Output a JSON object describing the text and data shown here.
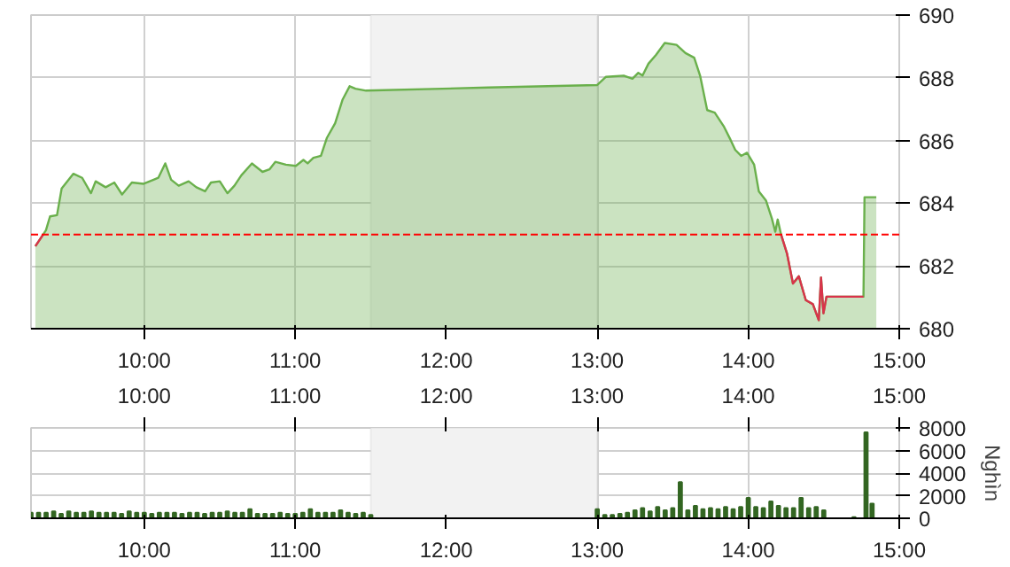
{
  "chart_data": [
    {
      "type": "area",
      "xlim": [
        9.25,
        15
      ],
      "ylim": [
        680,
        690
      ],
      "xticks": [
        {
          "value": 10,
          "label": "10:00"
        },
        {
          "value": 11,
          "label": "11:00"
        },
        {
          "value": 12,
          "label": "12:00"
        },
        {
          "value": 13,
          "label": "13:00"
        },
        {
          "value": 14,
          "label": "14:00"
        },
        {
          "value": 15,
          "label": "15:00"
        }
      ],
      "yticks": [
        680,
        682,
        684,
        686,
        688,
        690
      ],
      "grid": true,
      "ref_lines": [
        {
          "axis": "y",
          "value": 683,
          "color": "#ff0000",
          "line_style": "dashed"
        }
      ],
      "bands": [
        {
          "axis": "x",
          "from": 11.5,
          "to": 13,
          "color": "#f2f2f2"
        }
      ],
      "series": [
        {
          "type": "area",
          "color": "#6ab04c",
          "x": [
            9.279,
            9.349,
            9.376,
            9.422,
            9.453,
            9.531,
            9.589,
            9.647,
            9.678,
            9.744,
            9.802,
            9.853,
            9.918,
            9.996,
            10.062,
            10.093,
            10.139,
            10.178,
            10.228,
            10.294,
            10.345,
            10.403,
            10.442,
            10.5,
            10.551,
            10.597,
            10.643,
            10.713,
            10.783,
            10.829,
            10.868,
            10.938,
            11.004,
            11.054,
            11.082,
            11.12,
            11.17,
            11.209,
            11.264,
            11.314,
            11.36,
            11.399,
            11.469,
            12.28,
            13.0,
            13.058,
            13.175,
            13.233,
            13.272,
            13.3,
            13.339,
            13.389,
            13.447,
            13.525,
            13.584,
            13.642,
            13.681,
            13.728,
            13.778,
            13.837,
            13.883,
            13.914,
            13.953,
            13.992,
            14.039,
            14.07,
            14.117,
            14.156,
            14.179,
            14.195,
            14.218,
            14.257,
            14.296,
            14.335,
            14.381,
            14.428,
            14.467,
            14.482,
            14.498,
            14.518,
            14.763,
            14.77,
            14.848
          ],
          "values": [
            682.63,
            683.14,
            683.58,
            683.62,
            684.47,
            684.94,
            684.81,
            684.32,
            684.7,
            684.51,
            684.66,
            684.28,
            684.66,
            684.62,
            684.75,
            684.81,
            685.27,
            684.75,
            684.56,
            684.7,
            684.51,
            684.38,
            684.66,
            684.7,
            684.32,
            684.56,
            684.89,
            685.27,
            685.0,
            685.08,
            685.32,
            685.23,
            685.19,
            685.38,
            685.27,
            685.45,
            685.51,
            686.08,
            686.55,
            687.31,
            687.73,
            687.65,
            687.59,
            687.69,
            687.77,
            688.03,
            688.07,
            687.97,
            688.16,
            688.07,
            688.45,
            688.73,
            689.11,
            689.05,
            688.79,
            688.64,
            688.07,
            686.97,
            686.89,
            686.46,
            686.02,
            685.7,
            685.51,
            685.61,
            685.23,
            684.38,
            684.09,
            683.52,
            683.09,
            683.48,
            682.99,
            682.39,
            681.44,
            681.67,
            680.91,
            680.78,
            680.27,
            681.63,
            680.49,
            681.02,
            681.02,
            684.19,
            684.19
          ]
        },
        {
          "type": "line",
          "color": "#d9334a",
          "x": [
            9.279,
            9.33,
            12.0,
            14.218,
            14.257,
            14.296,
            14.335,
            14.381,
            14.428,
            14.467,
            14.482,
            14.498,
            14.518,
            14.763
          ],
          "values": [
            682.63,
            683.0,
            null,
            682.99,
            682.39,
            681.44,
            681.67,
            680.91,
            680.78,
            680.27,
            681.63,
            680.49,
            681.02,
            681.02
          ]
        }
      ]
    },
    {
      "type": "bar",
      "color": "#336622",
      "xlim": [
        9.25,
        15
      ],
      "ylim": [
        0,
        8000
      ],
      "xticks": [
        {
          "value": 10,
          "label": "10:00"
        },
        {
          "value": 11,
          "label": "11:00"
        },
        {
          "value": 12,
          "label": "12:00"
        },
        {
          "value": 13,
          "label": "13:00"
        },
        {
          "value": 14,
          "label": "14:00"
        },
        {
          "value": 15,
          "label": "15:00"
        }
      ],
      "x2lim": [
        9.25,
        15
      ],
      "x2ticks": [
        {
          "value": 10,
          "label": "10:00"
        },
        {
          "value": 11,
          "label": "11:00"
        },
        {
          "value": 12,
          "label": "12:00"
        },
        {
          "value": 13,
          "label": "13:00"
        },
        {
          "value": 14,
          "label": "14:00"
        },
        {
          "value": 15,
          "label": "15:00"
        }
      ],
      "yticks": [
        0,
        2000,
        4000,
        6000,
        8000
      ],
      "ylabel": "Nghìn",
      "grid": true,
      "bands": [
        {
          "axis": "x",
          "from": 11.5,
          "to": 13,
          "color": "#f2f2f2"
        }
      ],
      "x": [
        9.25,
        9.3,
        9.35,
        9.4,
        9.45,
        9.5,
        9.55,
        9.6,
        9.65,
        9.7,
        9.75,
        9.8,
        9.85,
        9.9,
        9.95,
        10.0,
        10.05,
        10.1,
        10.15,
        10.2,
        10.25,
        10.3,
        10.35,
        10.4,
        10.45,
        10.5,
        10.55,
        10.6,
        10.65,
        10.7,
        10.75,
        10.8,
        10.85,
        10.9,
        10.95,
        11.0,
        11.05,
        11.1,
        11.15,
        11.2,
        11.25,
        11.3,
        11.35,
        11.4,
        11.45,
        11.5,
        13.0,
        13.05,
        13.1,
        13.15,
        13.2,
        13.25,
        13.3,
        13.35,
        13.4,
        13.45,
        13.5,
        13.55,
        13.6,
        13.65,
        13.7,
        13.75,
        13.8,
        13.85,
        13.9,
        13.95,
        14.0,
        14.05,
        14.1,
        14.15,
        14.2,
        14.25,
        14.3,
        14.35,
        14.4,
        14.45,
        14.5,
        14.55,
        14.6,
        14.65,
        14.7,
        14.75,
        14.78,
        14.82
      ],
      "values": [
        500,
        500,
        500,
        600,
        400,
        600,
        500,
        500,
        600,
        500,
        500,
        500,
        400,
        600,
        500,
        500,
        400,
        500,
        500,
        500,
        400,
        500,
        500,
        400,
        500,
        500,
        600,
        500,
        500,
        800,
        400,
        400,
        400,
        500,
        400,
        400,
        500,
        800,
        500,
        500,
        500,
        700,
        500,
        400,
        500,
        300,
        800,
        300,
        300,
        400,
        500,
        700,
        900,
        600,
        1000,
        700,
        900,
        3200,
        700,
        1100,
        800,
        900,
        800,
        1000,
        800,
        1000,
        1800,
        1000,
        900,
        1500,
        1100,
        900,
        900,
        1800,
        900,
        1000,
        700,
        null,
        null,
        null,
        100,
        null,
        7600,
        1300
      ]
    }
  ]
}
